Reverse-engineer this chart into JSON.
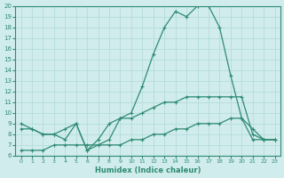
{
  "xlabel": "Humidex (Indice chaleur)",
  "bg_color": "#d0ecec",
  "line_color": "#2e8b74",
  "grid_color": "#b0d8d8",
  "xlim": [
    0,
    23
  ],
  "ylim": [
    6,
    20
  ],
  "xticks": [
    0,
    1,
    2,
    3,
    4,
    5,
    6,
    7,
    8,
    9,
    10,
    11,
    12,
    13,
    14,
    15,
    16,
    17,
    18,
    19,
    20,
    21,
    22,
    23
  ],
  "yticks": [
    6,
    7,
    8,
    9,
    10,
    11,
    12,
    13,
    14,
    15,
    16,
    17,
    18,
    19,
    20
  ],
  "line1_x": [
    0,
    1,
    2,
    3,
    4,
    5,
    6,
    7,
    8,
    9,
    10,
    11,
    12,
    13,
    14,
    15,
    16,
    17,
    18,
    19,
    20,
    21,
    22,
    23
  ],
  "line1_y": [
    8.5,
    8.5,
    8.0,
    8.0,
    8.5,
    9.0,
    6.5,
    7.5,
    9.0,
    9.5,
    9.5,
    10.0,
    10.5,
    11.0,
    11.0,
    11.5,
    11.5,
    11.5,
    11.5,
    11.5,
    11.5,
    8.0,
    7.5,
    7.5
  ],
  "line2_x": [
    0,
    1,
    2,
    3,
    4,
    5,
    6,
    7,
    8,
    9,
    10,
    11,
    12,
    13,
    14,
    15,
    16,
    17,
    18,
    19,
    20,
    21,
    22,
    23
  ],
  "line2_y": [
    6.5,
    6.5,
    6.5,
    7.0,
    7.0,
    7.0,
    7.0,
    7.0,
    7.0,
    7.0,
    7.5,
    7.5,
    8.0,
    8.0,
    8.5,
    8.5,
    9.0,
    9.0,
    9.0,
    9.5,
    9.5,
    7.5,
    7.5,
    7.5
  ],
  "line3_x": [
    0,
    1,
    2,
    3,
    4,
    5,
    6,
    7,
    8,
    9,
    10,
    11,
    12,
    13,
    14,
    15,
    16,
    17,
    18,
    19,
    20,
    21,
    22,
    23
  ],
  "line3_y": [
    9.0,
    8.5,
    8.0,
    8.0,
    7.5,
    9.0,
    6.5,
    7.0,
    7.5,
    9.5,
    10.0,
    12.5,
    15.5,
    18.0,
    19.5,
    19.0,
    20.0,
    20.0,
    18.0,
    13.5,
    9.5,
    8.5,
    7.5,
    7.5
  ]
}
